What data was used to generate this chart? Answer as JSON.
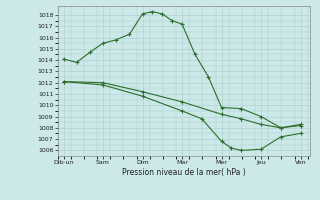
{
  "background_color": "#cce8e8",
  "grid_color": "#aacccc",
  "line_color": "#2d6e2d",
  "title": "Pression niveau de la mer( hPa )",
  "xlabel_days": [
    "Dimüun",
    "Sam",
    "Dim",
    "Mar",
    "Mer",
    "Jeu",
    "Ven"
  ],
  "xlabel_days2": [
    "Dim·un",
    "Sam",
    "Dim",
    "Mar",
    "Mer",
    "Jeu",
    "Ven"
  ],
  "xlabel_labels": [
    "Dib·un",
    "Sam",
    "Dim",
    "Mar",
    "Mer",
    "Jeu",
    "Ven"
  ],
  "ylim": [
    1005.5,
    1018.8
  ],
  "yticks": [
    1006,
    1007,
    1008,
    1009,
    1010,
    1011,
    1012,
    1013,
    1014,
    1015,
    1016,
    1017,
    1018
  ],
  "line1_x": [
    0.0,
    0.33,
    0.67,
    1.0,
    1.33,
    1.67,
    2.0,
    2.25,
    2.5,
    2.75,
    3.0,
    3.33,
    3.67,
    4.0,
    4.5,
    5.0,
    5.5,
    6.0
  ],
  "line1_y": [
    1014.1,
    1013.8,
    1014.7,
    1015.5,
    1015.8,
    1016.3,
    1018.1,
    1018.3,
    1018.1,
    1017.5,
    1017.2,
    1014.5,
    1012.5,
    1009.8,
    1009.7,
    1009.0,
    1008.0,
    1008.3
  ],
  "line2_x": [
    0.0,
    1.0,
    2.0,
    3.0,
    4.0,
    4.5,
    5.0,
    5.5,
    6.0
  ],
  "line2_y": [
    1012.1,
    1012.0,
    1011.2,
    1010.3,
    1009.2,
    1008.8,
    1008.3,
    1008.0,
    1008.2
  ],
  "line3_x": [
    0.0,
    1.0,
    2.0,
    3.0,
    3.5,
    4.0,
    4.25,
    4.5,
    5.0,
    5.5,
    6.0
  ],
  "line3_y": [
    1012.1,
    1011.8,
    1010.8,
    1009.5,
    1008.8,
    1006.8,
    1006.2,
    1006.0,
    1006.1,
    1007.2,
    1007.5
  ]
}
